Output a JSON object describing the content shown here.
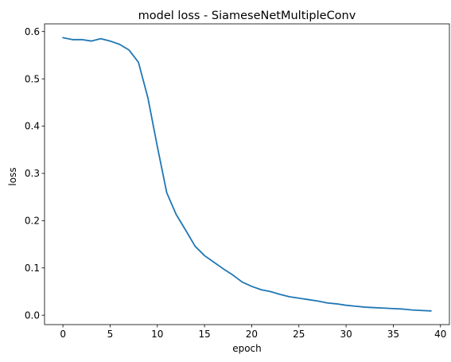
{
  "chart_data": {
    "type": "line",
    "title": "model loss - SiameseNetMultipleConv",
    "xlabel": "epoch",
    "ylabel": "loss",
    "xlim": [
      -1.95,
      40.95
    ],
    "ylim": [
      -0.0199,
      0.6163
    ],
    "xticks": [
      0,
      5,
      10,
      15,
      20,
      25,
      30,
      35,
      40
    ],
    "yticks": [
      0.0,
      0.1,
      0.2,
      0.3,
      0.4,
      0.5,
      0.6
    ],
    "ytick_labels": [
      "0.0",
      "0.1",
      "0.2",
      "0.3",
      "0.4",
      "0.5",
      "0.6"
    ],
    "grid": false,
    "color": "#1f77b4",
    "series": [
      {
        "x": [
          0,
          1,
          2,
          3,
          4,
          5,
          6,
          7,
          8,
          9,
          10,
          11,
          12,
          13,
          14,
          15,
          16,
          17,
          18,
          19,
          20,
          21,
          22,
          23,
          24,
          25,
          26,
          27,
          28,
          29,
          30,
          31,
          32,
          33,
          34,
          35,
          36,
          37,
          38,
          39
        ],
        "values": [
          0.587,
          0.583,
          0.583,
          0.58,
          0.585,
          0.58,
          0.573,
          0.561,
          0.535,
          0.46,
          0.357,
          0.259,
          0.213,
          0.18,
          0.146,
          0.126,
          0.112,
          0.098,
          0.085,
          0.07,
          0.061,
          0.054,
          0.05,
          0.044,
          0.039,
          0.036,
          0.033,
          0.03,
          0.026,
          0.024,
          0.021,
          0.019,
          0.017,
          0.016,
          0.015,
          0.014,
          0.013,
          0.011,
          0.01,
          0.009
        ]
      }
    ]
  }
}
